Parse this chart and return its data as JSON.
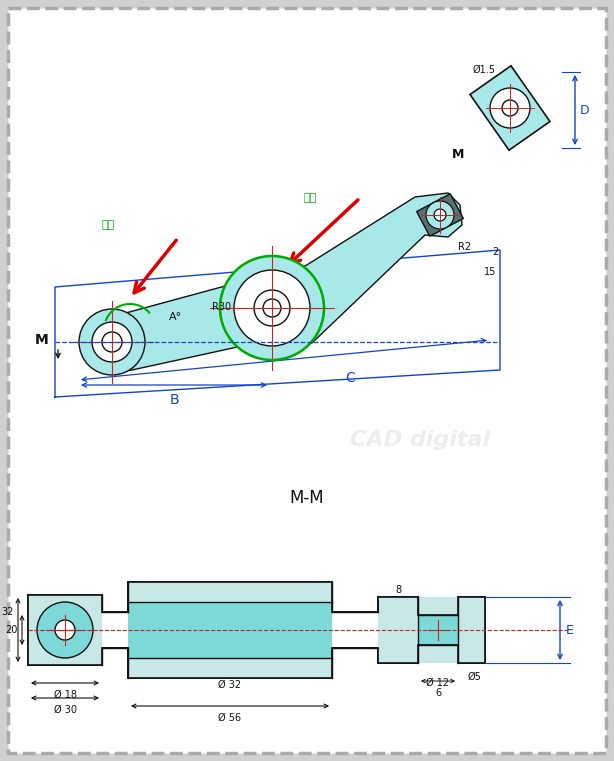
{
  "bg_outer": "#d0d0d0",
  "bg_inner": "#ffffff",
  "cyan": "#7dd8d8",
  "cyan_light": "#a8e8e8",
  "dark_gray": "#606060",
  "green": "#00aa00",
  "blue": "#1144cc",
  "red": "#dd0000",
  "black": "#111111",
  "hatch_bg": "#c8e8e8",
  "title_mm": "M-M",
  "label_B": "B",
  "label_C": "C",
  "label_D": "D",
  "label_E": "E",
  "label_M": "M",
  "tangent_cn": "相切",
  "phi18": "Ø 18",
  "phi30": "Ø 30",
  "phi32": "Ø 32",
  "phi56": "Ø 56",
  "phi12": "Ø 12",
  "phi15": "Ø1.5",
  "phi5": "Ø5",
  "dim_32": "32",
  "dim_20": "20",
  "dim_8": "8",
  "dim_6": "6",
  "dim_R2": "R2",
  "dim_2": "2",
  "dim_15": "15",
  "dim_R30": "R30",
  "dim_A": "A°"
}
